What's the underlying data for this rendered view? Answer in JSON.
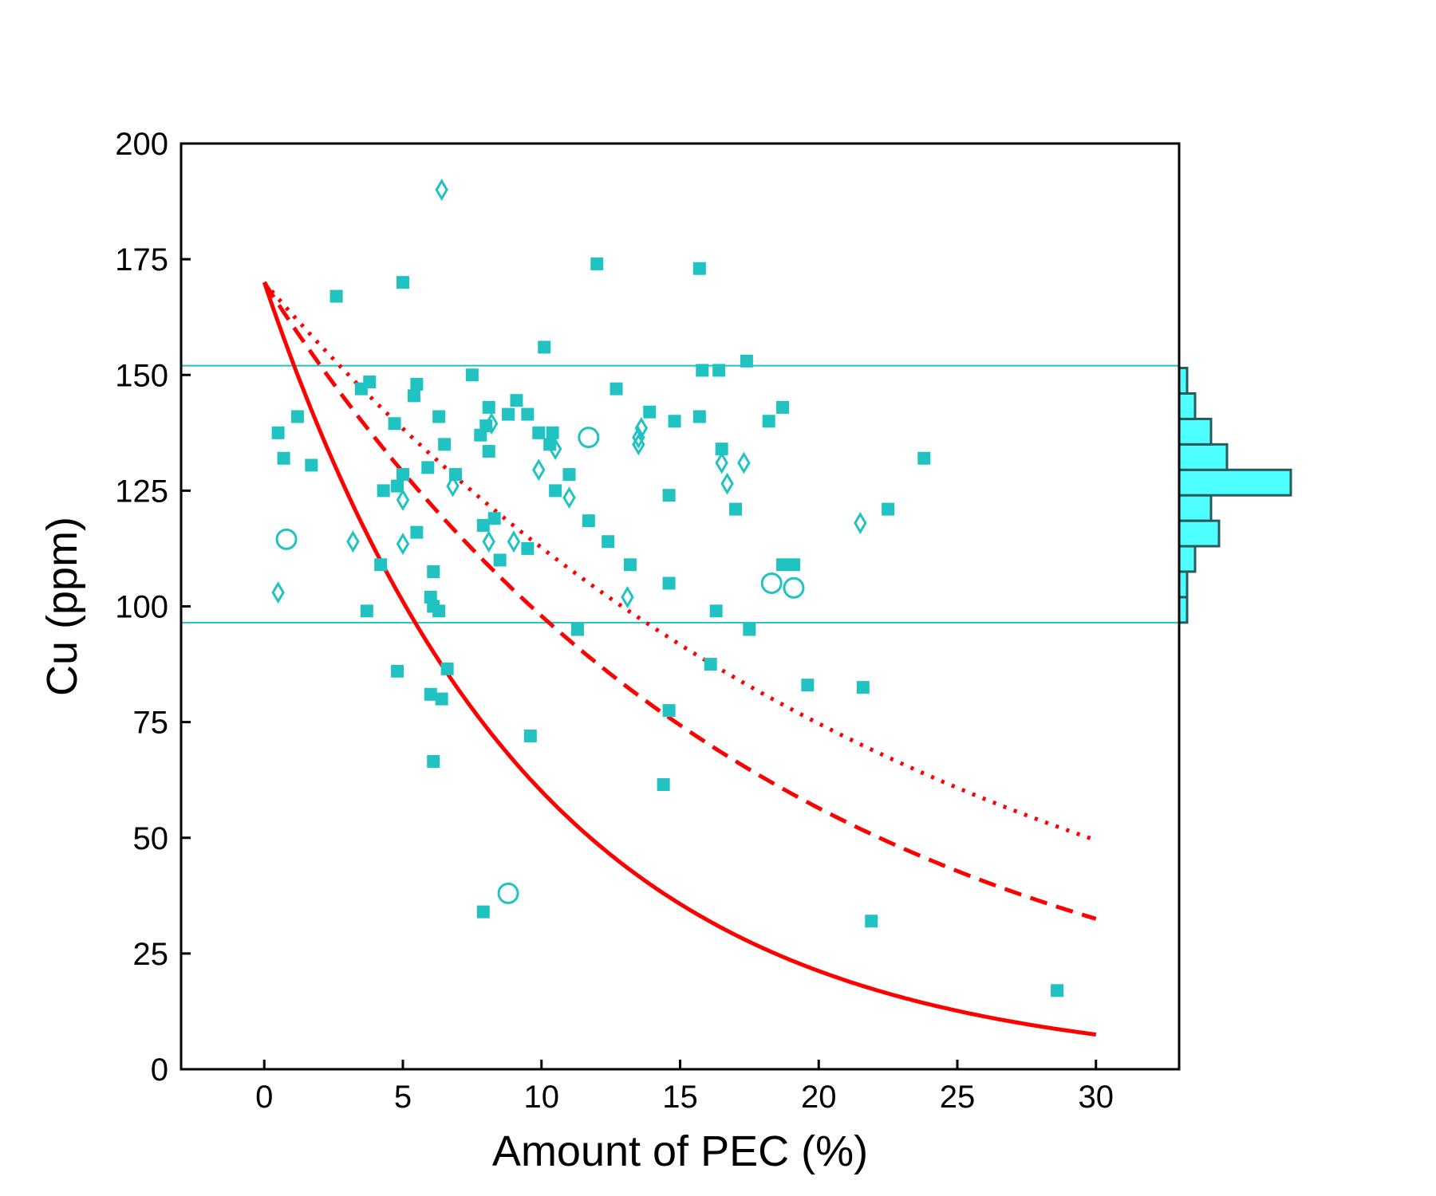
{
  "chart_data": {
    "type": "scatter",
    "title": "",
    "xlabel": "Amount of PEC (%)",
    "ylabel": "Cu (ppm)",
    "xlim": [
      -3,
      33
    ],
    "ylim": [
      0,
      200
    ],
    "x_ticks": [
      0,
      5,
      10,
      15,
      20,
      25,
      30
    ],
    "y_ticks": [
      0,
      25,
      50,
      75,
      100,
      125,
      150,
      175,
      200
    ],
    "grid": false,
    "legend": "none",
    "colors": {
      "markers": "#20c2c2",
      "curves": "#ff0000",
      "histogram": "#4dffff",
      "hist_edge": "#2a5a5a",
      "reference_lines": "#20c2c2"
    },
    "reference_lines_y": [
      152,
      96.5
    ],
    "series": [
      {
        "marker": "square",
        "points": [
          [
            0.5,
            137.5
          ],
          [
            0.7,
            132
          ],
          [
            1.2,
            141
          ],
          [
            1.7,
            130.5
          ],
          [
            2.6,
            167
          ],
          [
            3.5,
            147
          ],
          [
            3.8,
            148.5
          ],
          [
            3.7,
            99
          ],
          [
            4.2,
            109
          ],
          [
            4.3,
            125
          ],
          [
            4.7,
            139.5
          ],
          [
            4.8,
            126
          ],
          [
            4.8,
            86
          ],
          [
            5.0,
            128.5
          ],
          [
            5.0,
            170
          ],
          [
            5.4,
            145.5
          ],
          [
            5.5,
            148
          ],
          [
            5.5,
            116
          ],
          [
            5.9,
            130
          ],
          [
            6.0,
            102
          ],
          [
            6.0,
            81
          ],
          [
            6.1,
            107.5
          ],
          [
            6.1,
            100
          ],
          [
            6.1,
            66.5
          ],
          [
            6.3,
            141
          ],
          [
            6.3,
            99
          ],
          [
            6.4,
            80
          ],
          [
            6.5,
            135
          ],
          [
            6.6,
            86.5
          ],
          [
            6.9,
            128.5
          ],
          [
            7.5,
            150
          ],
          [
            7.8,
            137
          ],
          [
            7.9,
            117.5
          ],
          [
            7.9,
            34
          ],
          [
            8.0,
            139
          ],
          [
            8.1,
            143
          ],
          [
            8.1,
            133.5
          ],
          [
            8.3,
            119
          ],
          [
            8.5,
            110
          ],
          [
            8.8,
            141.5
          ],
          [
            9.1,
            144.5
          ],
          [
            9.5,
            141.5
          ],
          [
            9.5,
            112.5
          ],
          [
            9.6,
            72
          ],
          [
            9.9,
            137.5
          ],
          [
            10.1,
            156
          ],
          [
            10.3,
            135
          ],
          [
            10.4,
            137.5
          ],
          [
            10.5,
            125
          ],
          [
            11.0,
            128.5
          ],
          [
            11.3,
            95
          ],
          [
            11.7,
            118.5
          ],
          [
            12.0,
            174
          ],
          [
            12.4,
            114
          ],
          [
            12.7,
            147
          ],
          [
            13.2,
            109
          ],
          [
            13.9,
            142
          ],
          [
            14.4,
            61.5
          ],
          [
            14.6,
            124
          ],
          [
            14.6,
            105
          ],
          [
            14.6,
            77.5
          ],
          [
            14.8,
            140
          ],
          [
            15.7,
            173
          ],
          [
            15.7,
            141
          ],
          [
            15.8,
            151
          ],
          [
            16.1,
            87.5
          ],
          [
            16.3,
            99
          ],
          [
            16.4,
            151
          ],
          [
            16.5,
            134
          ],
          [
            17.0,
            121
          ],
          [
            17.4,
            153
          ],
          [
            17.5,
            95
          ],
          [
            18.2,
            140
          ],
          [
            18.7,
            143
          ],
          [
            18.7,
            109
          ],
          [
            19.1,
            109
          ],
          [
            19.6,
            83
          ],
          [
            21.6,
            82.5
          ],
          [
            21.9,
            32
          ],
          [
            22.5,
            121
          ],
          [
            23.8,
            132
          ],
          [
            28.6,
            17
          ]
        ]
      },
      {
        "marker": "diamond",
        "points": [
          [
            0.5,
            103
          ],
          [
            3.2,
            114
          ],
          [
            5.0,
            123
          ],
          [
            5.0,
            113.5
          ],
          [
            6.4,
            190
          ],
          [
            6.8,
            126
          ],
          [
            8.1,
            114
          ],
          [
            8.2,
            139.5
          ],
          [
            9.0,
            114
          ],
          [
            9.9,
            129.5
          ],
          [
            10.5,
            134
          ],
          [
            11.0,
            123.5
          ],
          [
            13.1,
            102
          ],
          [
            13.5,
            136.5
          ],
          [
            13.5,
            135
          ],
          [
            13.6,
            138.5
          ],
          [
            16.5,
            131
          ],
          [
            16.7,
            126.5
          ],
          [
            17.3,
            131
          ],
          [
            21.5,
            118
          ]
        ]
      },
      {
        "marker": "circle",
        "points": [
          [
            0.8,
            114.5
          ],
          [
            8.8,
            38
          ],
          [
            11.7,
            136.5
          ],
          [
            18.3,
            105
          ],
          [
            19.1,
            104
          ]
        ]
      }
    ],
    "curves": [
      {
        "style": "solid",
        "x_range": [
          0,
          30
        ],
        "y_start": 170,
        "y_end": 7.5
      },
      {
        "style": "dashed",
        "x_range": [
          0,
          30
        ],
        "y_start": 170,
        "y_end": 32.5
      },
      {
        "style": "dotted",
        "x_range": [
          0,
          30
        ],
        "y_start": 170,
        "y_end": 49.5
      }
    ],
    "histogram": {
      "orientation": "horizontal",
      "bins": [
        {
          "range": [
            96.5,
            102
          ],
          "count": 1
        },
        {
          "range": [
            102,
            107.5
          ],
          "count": 1
        },
        {
          "range": [
            107.5,
            113
          ],
          "count": 2
        },
        {
          "range": [
            113,
            118.5
          ],
          "count": 5
        },
        {
          "range": [
            118.5,
            124
          ],
          "count": 4
        },
        {
          "range": [
            124,
            129.5
          ],
          "count": 14
        },
        {
          "range": [
            129.5,
            135
          ],
          "count": 6
        },
        {
          "range": [
            135,
            140.5
          ],
          "count": 4
        },
        {
          "range": [
            140.5,
            146
          ],
          "count": 2
        },
        {
          "range": [
            146,
            151.5
          ],
          "count": 1
        }
      ]
    }
  }
}
